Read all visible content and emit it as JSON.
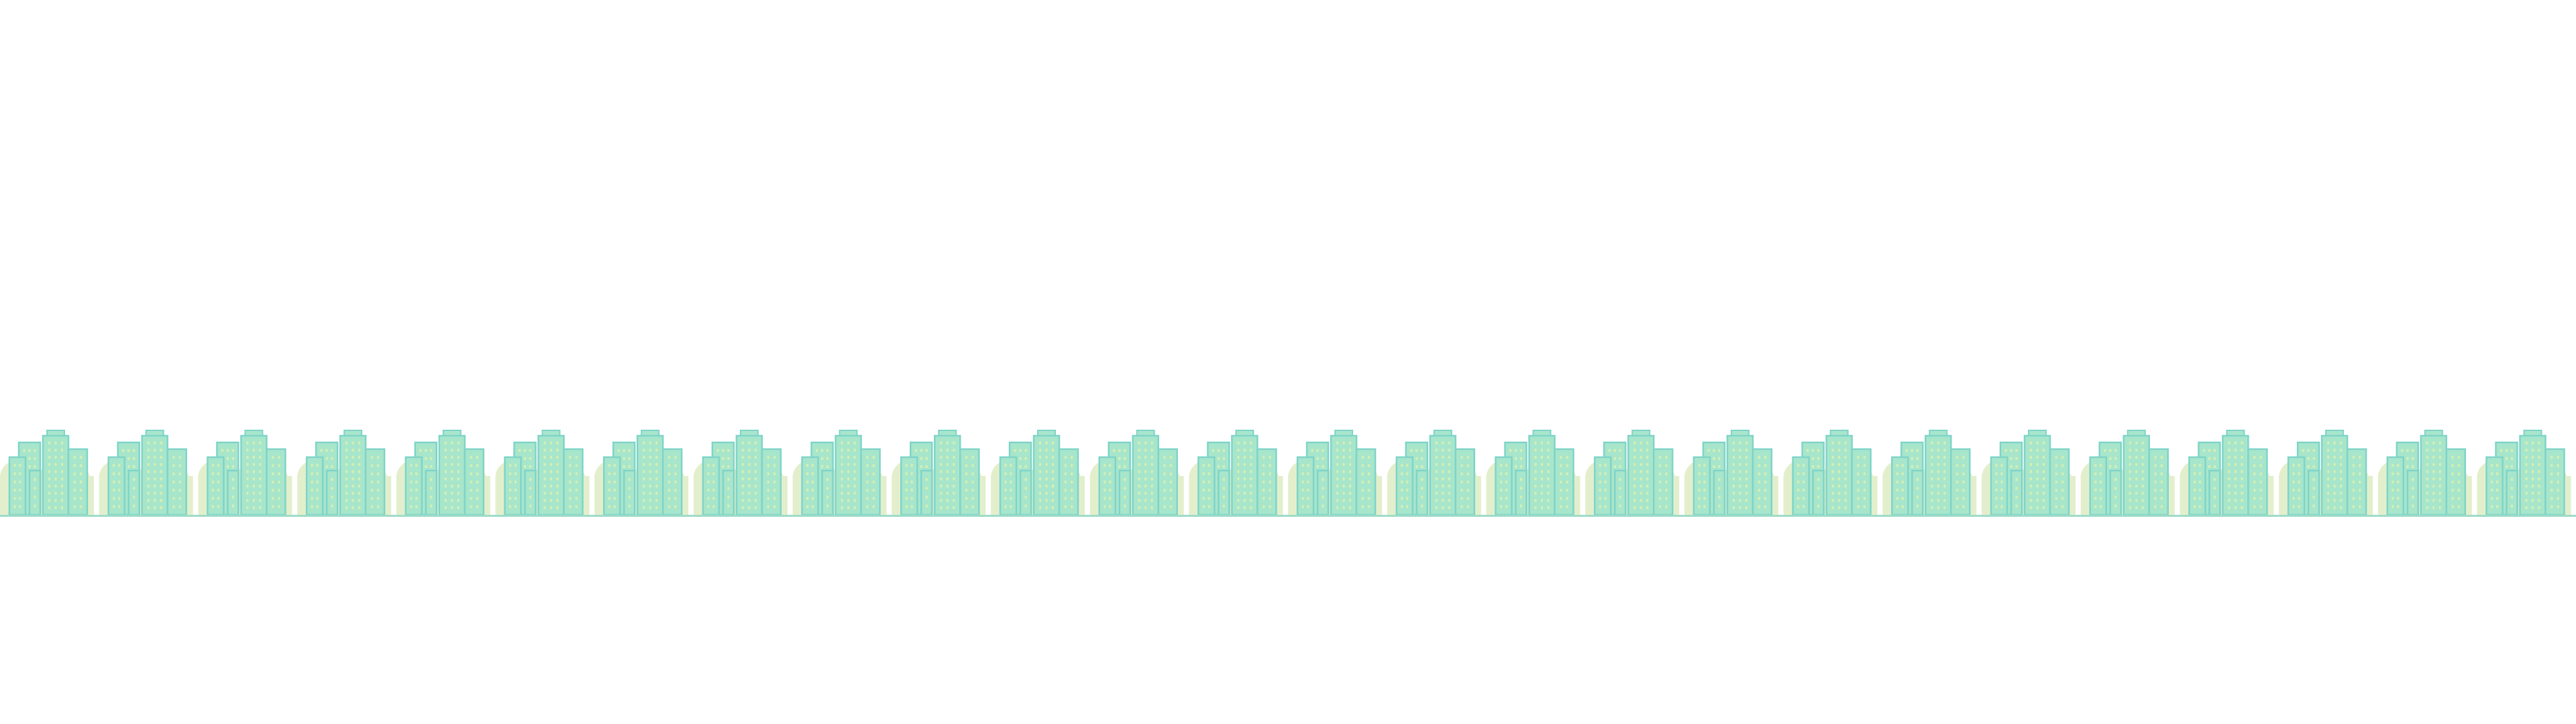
{
  "skyline": {
    "icon": "city-buildings-icon",
    "tile_count": 26,
    "colors": {
      "blob": "#e3efcc",
      "building_fill": "#a8e6cc",
      "building_stroke": "#7fd4c8",
      "window": "#d8f0b0",
      "ground": "#9edcc8"
    }
  }
}
